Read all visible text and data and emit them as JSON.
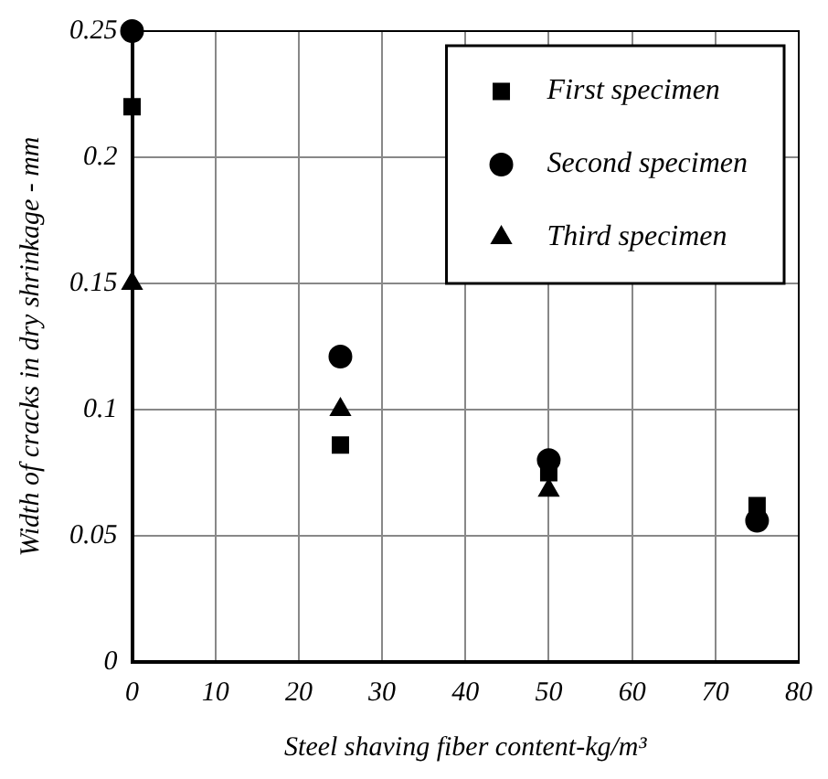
{
  "chart_data": {
    "type": "scatter",
    "xlabel": "Steel shaving fiber content-kg/m³",
    "ylabel": "Width of cracks in dry shrinkage - mm",
    "x": [
      0,
      25,
      50,
      75
    ],
    "series": [
      {
        "name": "First specimen",
        "color": "#000000",
        "marker": "square",
        "values": [
          0.22,
          0.086,
          0.075,
          0.062
        ]
      },
      {
        "name": "Second specimen",
        "color": "#000000",
        "marker": "circle",
        "values": [
          0.25,
          0.121,
          0.08,
          0.056
        ]
      },
      {
        "name": "Third specimen",
        "color": "#000000",
        "marker": "triangle",
        "values": [
          0.15,
          0.1,
          0.068,
          null
        ]
      }
    ],
    "xlim": [
      0,
      80
    ],
    "xticks": [
      0,
      10,
      20,
      30,
      40,
      50,
      60,
      70,
      80
    ],
    "ylim": [
      0,
      0.25
    ],
    "yticks": [
      0,
      0.05,
      0.1,
      0.15,
      0.2,
      0.25
    ],
    "grid": true,
    "legend": "top right"
  }
}
